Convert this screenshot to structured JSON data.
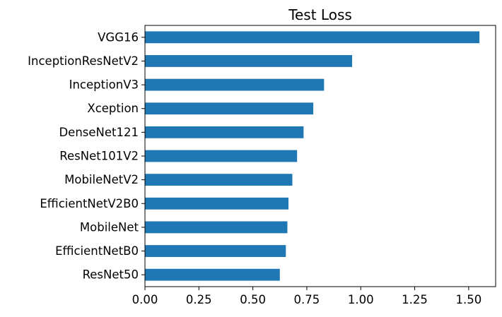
{
  "chart_data": {
    "type": "bar",
    "orientation": "horizontal",
    "title": "Test Loss",
    "xlabel": "",
    "ylabel": "",
    "categories": [
      "VGG16",
      "InceptionResNetV2",
      "InceptionV3",
      "Xception",
      "DenseNet121",
      "ResNet101V2",
      "MobileNetV2",
      "EfficientNetV2B0",
      "MobileNet",
      "EfficientNetB0",
      "ResNet50"
    ],
    "values": [
      1.55,
      0.96,
      0.83,
      0.78,
      0.735,
      0.705,
      0.683,
      0.665,
      0.66,
      0.653,
      0.625
    ],
    "xlim": [
      0,
      1.625
    ],
    "xticks": [
      0.0,
      0.25,
      0.5,
      0.75,
      1.0,
      1.25,
      1.5
    ],
    "xtick_labels": [
      "0.00",
      "0.25",
      "0.50",
      "0.75",
      "1.00",
      "1.25",
      "1.50"
    ],
    "grid": false,
    "legend": "none",
    "bar_color": "#1f77b4"
  }
}
